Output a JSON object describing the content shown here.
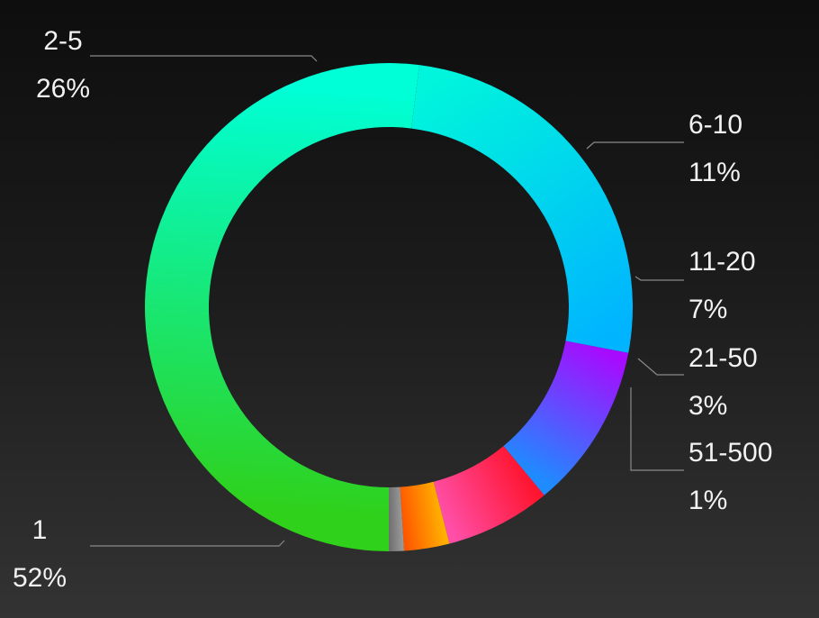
{
  "chart_data": {
    "type": "pie",
    "variant": "donut",
    "start": "bottom",
    "direction": "clockwise",
    "legend": "none",
    "title": "",
    "slices": [
      {
        "label": "1",
        "pct_label": "52%",
        "value": 52,
        "color_start": "#2fd11a",
        "color_end": "#00ffd6"
      },
      {
        "label": "2-5",
        "pct_label": "26%",
        "value": 26,
        "color_start": "#00f5dc",
        "color_end": "#00b4ff"
      },
      {
        "label": "6-10",
        "pct_label": "11%",
        "value": 11,
        "color_start": "#a70bff",
        "color_end": "#1e8cff"
      },
      {
        "label": "11-20",
        "pct_label": "7%",
        "value": 7,
        "color_start": "#ff1530",
        "color_end": "#ff4fa8"
      },
      {
        "label": "21-50",
        "pct_label": "3%",
        "value": 3,
        "color_start": "#ffb100",
        "color_end": "#ff5700"
      },
      {
        "label": "51-500",
        "pct_label": "1%",
        "value": 1,
        "color_start": "#9a9a9a",
        "color_end": "#6f6f6f"
      }
    ]
  }
}
